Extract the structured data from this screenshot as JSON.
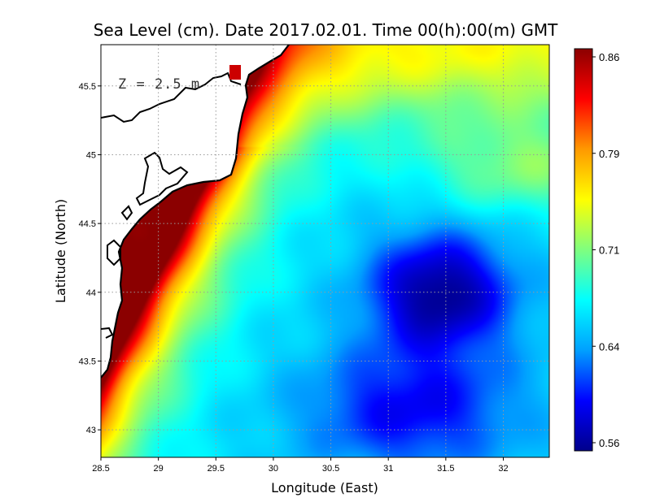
{
  "chart_data": {
    "type": "heatmap",
    "title": "Sea Level (cm). Date 2017.02.01. Time 00(h):00(m) GMT",
    "xlabel": "Longitude (East)",
    "ylabel": "Latitude (North)",
    "xlim": [
      28.5,
      32.4
    ],
    "ylim": [
      42.8,
      45.8
    ],
    "x_ticks": [
      "28.5",
      "29",
      "29.5",
      "30",
      "30.5",
      "31",
      "31.5",
      "32"
    ],
    "y_ticks": [
      "43",
      "43.5",
      "44",
      "44.5",
      "45",
      "45.5"
    ],
    "annotation": "Z = 2.5 m",
    "grid": true,
    "colorbar": {
      "min": 0.56,
      "max": 0.86,
      "ticks": [
        "0.86",
        "0.79",
        "0.71",
        "0.64",
        "0.56"
      ],
      "colors": [
        "#00008b",
        "#0000ff",
        "#00a0ff",
        "#00ffff",
        "#7fff7f",
        "#ffff00",
        "#ff9900",
        "#ff0000",
        "#8b0000"
      ]
    },
    "field_notes": "Highest levels (~0.84-0.86) along the western coast (Romania/Bulgaria); minimum (~0.56) around 31.5E, 44.1N.",
    "features": [
      {
        "lon": 31.5,
        "lat": 44.1,
        "value": 0.56
      },
      {
        "lon": 28.8,
        "lat": 44.4,
        "value": 0.85
      },
      {
        "lon": 30.0,
        "lat": 45.7,
        "value": 0.84
      },
      {
        "lon": 32.2,
        "lat": 45.6,
        "value": 0.76
      },
      {
        "lon": 32.3,
        "lat": 44.7,
        "value": 0.72
      },
      {
        "lon": 29.5,
        "lat": 43.0,
        "value": 0.66
      },
      {
        "lon": 31.0,
        "lat": 43.0,
        "value": 0.62
      }
    ]
  }
}
